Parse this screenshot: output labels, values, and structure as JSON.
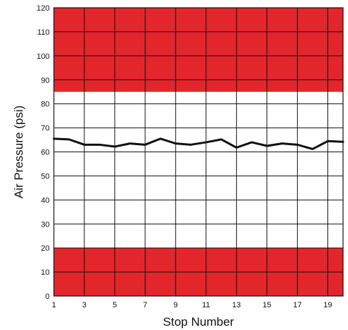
{
  "chart_data": {
    "type": "line",
    "title": "",
    "xlabel": "Stop Number",
    "ylabel": "Air Pressure (psi)",
    "xlim": [
      1,
      20
    ],
    "ylim": [
      0,
      120
    ],
    "x_ticks": [
      1,
      3,
      5,
      7,
      9,
      11,
      13,
      15,
      17,
      19
    ],
    "y_ticks": [
      0,
      10,
      20,
      30,
      40,
      50,
      60,
      70,
      80,
      90,
      100,
      110,
      120
    ],
    "grid": true,
    "legend": "none",
    "bands": [
      {
        "from": 0,
        "to": 20,
        "color": "#e3262b"
      },
      {
        "from": 85,
        "to": 120,
        "color": "#e3262b"
      }
    ],
    "series": [
      {
        "color": "#111111",
        "x": [
          1,
          2,
          3,
          4,
          5,
          6,
          7,
          8,
          9,
          10,
          11,
          12,
          13,
          14,
          15,
          16,
          17,
          18,
          19,
          20
        ],
        "y": [
          65.5,
          65.2,
          63.0,
          63.0,
          62.2,
          63.5,
          63.0,
          65.5,
          63.5,
          63.0,
          64.0,
          65.2,
          61.8,
          64.0,
          62.5,
          63.5,
          63.0,
          61.2,
          64.5,
          64.2
        ]
      }
    ]
  }
}
